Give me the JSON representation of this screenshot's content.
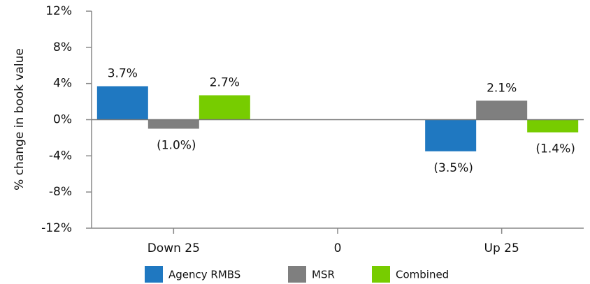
{
  "chart_data": {
    "type": "bar",
    "y_label": "% change in book value",
    "categories": [
      "Down 25",
      "0",
      "Up 25"
    ],
    "series": [
      {
        "name": "Agency RMBS",
        "color": "#1f78c1",
        "values": [
          3.7,
          null,
          -3.5
        ],
        "value_labels": [
          "3.7%",
          null,
          "(3.5%)"
        ]
      },
      {
        "name": "MSR",
        "color": "#7f7f7f",
        "values": [
          -1.0,
          null,
          2.1
        ],
        "value_labels": [
          "(1.0%)",
          null,
          "2.1%"
        ]
      },
      {
        "name": "Combined",
        "color": "#77cc00",
        "values": [
          2.7,
          null,
          -1.4
        ],
        "value_labels": [
          "2.7%",
          null,
          "(1.4%)"
        ]
      }
    ],
    "ylim": [
      -12,
      12
    ],
    "yticks": [
      {
        "value": -12,
        "label": "-12%"
      },
      {
        "value": -8,
        "label": "-8%"
      },
      {
        "value": -4,
        "label": "-4%"
      },
      {
        "value": 0,
        "label": "0%"
      },
      {
        "value": 4,
        "label": "4%"
      },
      {
        "value": 8,
        "label": "8%"
      },
      {
        "value": 12,
        "label": "12%"
      }
    ],
    "legend": "bottom"
  }
}
